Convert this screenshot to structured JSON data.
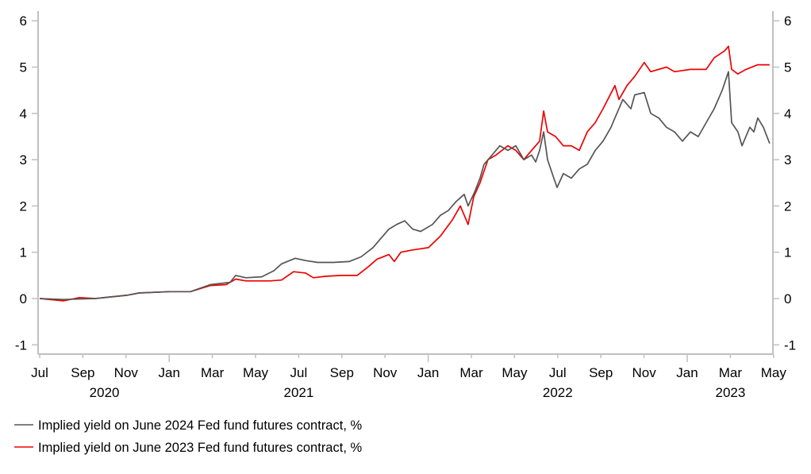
{
  "chart_data": {
    "type": "line",
    "title": "",
    "xlabel": "",
    "ylabel": "",
    "x_unit": "months since Jul 2020",
    "xlim": [
      -0.1,
      34
    ],
    "ylim": [
      -1.2,
      6.2
    ],
    "grid": false,
    "legend_position": "bottom-left",
    "y_ticks": [
      6,
      5,
      4,
      3,
      2,
      1,
      0,
      -1
    ],
    "y_tick_labels": [
      "6",
      "5",
      "4",
      "3",
      "2",
      "1",
      "0",
      "-1"
    ],
    "x_ticks": [
      {
        "x": 0,
        "label": "Jul"
      },
      {
        "x": 2,
        "label": "Sep"
      },
      {
        "x": 4,
        "label": "Nov"
      },
      {
        "x": 6,
        "label": "Jan"
      },
      {
        "x": 8,
        "label": "Mar"
      },
      {
        "x": 10,
        "label": "May"
      },
      {
        "x": 12,
        "label": "Jul"
      },
      {
        "x": 14,
        "label": "Sep"
      },
      {
        "x": 16,
        "label": "Nov"
      },
      {
        "x": 18,
        "label": "Jan"
      },
      {
        "x": 20,
        "label": "Mar"
      },
      {
        "x": 22,
        "label": "May"
      },
      {
        "x": 24,
        "label": "Jul"
      },
      {
        "x": 26,
        "label": "Sep"
      },
      {
        "x": 28,
        "label": "Nov"
      },
      {
        "x": 30,
        "label": "Jan"
      },
      {
        "x": 32,
        "label": "Mar"
      },
      {
        "x": 34,
        "label": "May"
      }
    ],
    "year_labels": [
      {
        "x": 3,
        "label": "2020"
      },
      {
        "x": 12,
        "label": "2021"
      },
      {
        "x": 24,
        "label": "2022"
      },
      {
        "x": 32,
        "label": "2023"
      }
    ],
    "series": [
      {
        "name": "Implied yield on June 2024 Fed fund futures contract, %",
        "color": "#555555",
        "points": [
          [
            0,
            0
          ],
          [
            1.1,
            -0.02
          ],
          [
            2.57,
            0.0
          ],
          [
            4.04,
            0.07
          ],
          [
            4.6,
            0.12
          ],
          [
            6.03,
            0.15
          ],
          [
            6.99,
            0.15
          ],
          [
            7.9,
            0.3
          ],
          [
            8.82,
            0.35
          ],
          [
            9.08,
            0.5
          ],
          [
            9.56,
            0.45
          ],
          [
            10.29,
            0.47
          ],
          [
            10.85,
            0.6
          ],
          [
            11.21,
            0.75
          ],
          [
            11.84,
            0.87
          ],
          [
            12.32,
            0.82
          ],
          [
            12.87,
            0.78
          ],
          [
            13.6,
            0.78
          ],
          [
            14.34,
            0.8
          ],
          [
            14.89,
            0.9
          ],
          [
            15.44,
            1.1
          ],
          [
            15.81,
            1.3
          ],
          [
            16.18,
            1.5
          ],
          [
            16.54,
            1.6
          ],
          [
            16.91,
            1.68
          ],
          [
            17.28,
            1.5
          ],
          [
            17.65,
            1.45
          ],
          [
            18.2,
            1.6
          ],
          [
            18.57,
            1.8
          ],
          [
            18.93,
            1.9
          ],
          [
            19.3,
            2.1
          ],
          [
            19.67,
            2.25
          ],
          [
            19.85,
            2.0
          ],
          [
            20.15,
            2.3
          ],
          [
            20.4,
            2.6
          ],
          [
            20.59,
            2.9
          ],
          [
            20.96,
            3.1
          ],
          [
            21.32,
            3.3
          ],
          [
            21.69,
            3.2
          ],
          [
            22.06,
            3.3
          ],
          [
            22.43,
            3.0
          ],
          [
            22.79,
            3.1
          ],
          [
            22.98,
            2.95
          ],
          [
            23.16,
            3.2
          ],
          [
            23.35,
            3.6
          ],
          [
            23.53,
            3.0
          ],
          [
            23.82,
            2.6
          ],
          [
            23.97,
            2.4
          ],
          [
            24.26,
            2.7
          ],
          [
            24.63,
            2.6
          ],
          [
            25.0,
            2.8
          ],
          [
            25.37,
            2.9
          ],
          [
            25.74,
            3.2
          ],
          [
            26.1,
            3.4
          ],
          [
            26.47,
            3.7
          ],
          [
            26.65,
            3.9
          ],
          [
            27.02,
            4.3
          ],
          [
            27.39,
            4.1
          ],
          [
            27.57,
            4.4
          ],
          [
            28.01,
            4.45
          ],
          [
            28.31,
            4.0
          ],
          [
            28.68,
            3.9
          ],
          [
            29.04,
            3.7
          ],
          [
            29.41,
            3.6
          ],
          [
            29.78,
            3.4
          ],
          [
            30.15,
            3.6
          ],
          [
            30.51,
            3.5
          ],
          [
            30.88,
            3.8
          ],
          [
            31.25,
            4.1
          ],
          [
            31.62,
            4.5
          ],
          [
            31.91,
            4.9
          ],
          [
            32.06,
            3.8
          ],
          [
            32.35,
            3.6
          ],
          [
            32.54,
            3.3
          ],
          [
            32.9,
            3.7
          ],
          [
            33.09,
            3.6
          ],
          [
            33.27,
            3.9
          ],
          [
            33.53,
            3.7
          ],
          [
            33.82,
            3.35
          ]
        ]
      },
      {
        "name": "Implied yield on June 2023 Fed fund futures contract, %",
        "color": "#ee0000",
        "points": [
          [
            0,
            0
          ],
          [
            1.1,
            -0.05
          ],
          [
            1.84,
            0.02
          ],
          [
            2.57,
            0.0
          ],
          [
            4.04,
            0.07
          ],
          [
            4.6,
            0.12
          ],
          [
            6.03,
            0.15
          ],
          [
            6.99,
            0.15
          ],
          [
            7.9,
            0.28
          ],
          [
            8.64,
            0.3
          ],
          [
            9.08,
            0.42
          ],
          [
            9.56,
            0.38
          ],
          [
            10.66,
            0.38
          ],
          [
            11.21,
            0.4
          ],
          [
            11.76,
            0.58
          ],
          [
            12.32,
            0.55
          ],
          [
            12.68,
            0.45
          ],
          [
            13.24,
            0.48
          ],
          [
            13.97,
            0.5
          ],
          [
            14.71,
            0.5
          ],
          [
            15.26,
            0.7
          ],
          [
            15.63,
            0.85
          ],
          [
            16.18,
            0.95
          ],
          [
            16.43,
            0.8
          ],
          [
            16.73,
            1.0
          ],
          [
            17.28,
            1.05
          ],
          [
            18.01,
            1.1
          ],
          [
            18.57,
            1.35
          ],
          [
            19.12,
            1.7
          ],
          [
            19.49,
            2.0
          ],
          [
            19.85,
            1.6
          ],
          [
            20.11,
            2.2
          ],
          [
            20.4,
            2.5
          ],
          [
            20.77,
            3.0
          ],
          [
            21.14,
            3.1
          ],
          [
            21.69,
            3.3
          ],
          [
            22.06,
            3.2
          ],
          [
            22.43,
            3.0
          ],
          [
            22.79,
            3.2
          ],
          [
            23.16,
            3.4
          ],
          [
            23.35,
            4.05
          ],
          [
            23.53,
            3.6
          ],
          [
            23.9,
            3.5
          ],
          [
            24.26,
            3.3
          ],
          [
            24.63,
            3.3
          ],
          [
            25.0,
            3.2
          ],
          [
            25.37,
            3.6
          ],
          [
            25.74,
            3.8
          ],
          [
            26.1,
            4.1
          ],
          [
            26.65,
            4.6
          ],
          [
            26.84,
            4.3
          ],
          [
            27.21,
            4.6
          ],
          [
            27.57,
            4.8
          ],
          [
            28.01,
            5.1
          ],
          [
            28.31,
            4.9
          ],
          [
            29.04,
            5.0
          ],
          [
            29.41,
            4.9
          ],
          [
            30.15,
            4.95
          ],
          [
            30.88,
            4.95
          ],
          [
            31.25,
            5.2
          ],
          [
            31.73,
            5.35
          ],
          [
            31.91,
            5.45
          ],
          [
            32.06,
            4.95
          ],
          [
            32.35,
            4.85
          ],
          [
            32.72,
            4.95
          ],
          [
            33.27,
            5.05
          ],
          [
            33.82,
            5.05
          ]
        ]
      }
    ]
  }
}
